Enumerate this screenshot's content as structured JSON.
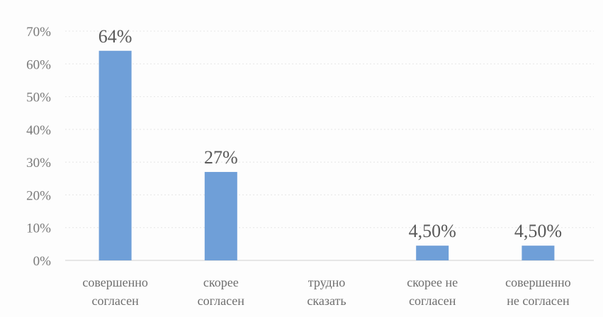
{
  "chart_data": {
    "type": "bar",
    "categories": [
      [
        "совершенно",
        "согласен"
      ],
      [
        "скорее",
        "согласен"
      ],
      [
        "трудно",
        "сказать"
      ],
      [
        "скорее не",
        "согласен"
      ],
      [
        "совершенно",
        "не согласен"
      ]
    ],
    "values": [
      64,
      27,
      0,
      4.5,
      4.5
    ],
    "data_labels": [
      "64%",
      "27%",
      "",
      "4,50%",
      "4,50%"
    ],
    "ytick_labels": [
      "0%",
      "10%",
      "20%",
      "30%",
      "40%",
      "50%",
      "60%",
      "70%"
    ],
    "ylim": [
      0,
      70
    ],
    "grid": true,
    "legend": "none",
    "bar_color": "#6f9fd8"
  }
}
